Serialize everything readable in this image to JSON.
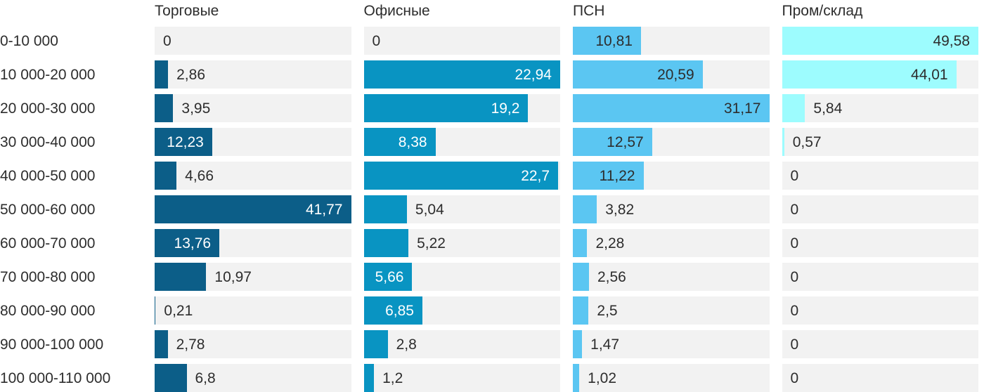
{
  "chart_data": {
    "type": "bar",
    "orientation": "horizontal",
    "title": "",
    "xlabel": "",
    "ylabel": "",
    "legend_position": "column-headers",
    "grid": false,
    "track_color": "#f2f2f2",
    "outside_label_color": "#2d2d2d",
    "header_color": "#2d2d2d",
    "row_label_color": "#2d2d2d",
    "scaling": "each column scaled independently, column max fills full track width",
    "categories": [
      "0-10 000",
      "10 000-20 000",
      "20 000-30 000",
      "30 000-40 000",
      "40 000-50 000",
      "50 000-60 000",
      "60 000-70 000",
      "70 000-80 000",
      "80 000-90 000",
      "90 000-100 000",
      "100 000-110 000"
    ],
    "series": [
      {
        "name": "Торговые",
        "color": "#0c5e88",
        "inside_label_color": "#ffffff",
        "max": 41.77,
        "values": [
          0,
          2.86,
          3.95,
          12.23,
          4.66,
          41.77,
          13.76,
          10.97,
          0.21,
          2.78,
          6.8
        ],
        "labels": [
          "0",
          "2,86",
          "3,95",
          "12,23",
          "4,66",
          "41,77",
          "13,76",
          "10,97",
          "0,21",
          "2,78",
          "6,8"
        ],
        "inside": [
          false,
          false,
          false,
          true,
          false,
          true,
          true,
          false,
          false,
          false,
          false
        ]
      },
      {
        "name": "Офисные",
        "color": "#0994c2",
        "inside_label_color": "#ffffff",
        "max": 22.94,
        "values": [
          0,
          22.94,
          19.2,
          8.38,
          22.7,
          5.04,
          5.22,
          5.66,
          6.85,
          2.8,
          1.2
        ],
        "labels": [
          "0",
          "22,94",
          "19,2",
          "8,38",
          "22,7",
          "5,04",
          "5,22",
          "5,66",
          "6,85",
          "2,8",
          "1,2"
        ],
        "inside": [
          false,
          true,
          true,
          true,
          true,
          false,
          false,
          true,
          true,
          false,
          false
        ]
      },
      {
        "name": "ПСН",
        "color": "#5bc6f2",
        "inside_label_color": "#2d2d2d",
        "max": 31.17,
        "values": [
          10.81,
          20.59,
          31.17,
          12.57,
          11.22,
          3.82,
          2.28,
          2.56,
          2.5,
          1.47,
          1.02
        ],
        "labels": [
          "10,81",
          "20,59",
          "31,17",
          "12,57",
          "11,22",
          "3,82",
          "2,28",
          "2,56",
          "2,5",
          "1,47",
          "1,02"
        ],
        "inside": [
          true,
          true,
          true,
          true,
          true,
          false,
          false,
          false,
          false,
          false,
          false
        ]
      },
      {
        "name": "Пром/склад",
        "color": "#9dfcfe",
        "inside_label_color": "#2d2d2d",
        "max": 49.58,
        "values": [
          49.58,
          44.01,
          5.84,
          0.57,
          0,
          0,
          0,
          0,
          0,
          0,
          0
        ],
        "labels": [
          "49,58",
          "44,01",
          "5,84",
          "0,57",
          "0",
          "0",
          "0",
          "0",
          "0",
          "0",
          "0"
        ],
        "inside": [
          true,
          true,
          false,
          false,
          false,
          false,
          false,
          false,
          false,
          false,
          false
        ]
      }
    ]
  }
}
